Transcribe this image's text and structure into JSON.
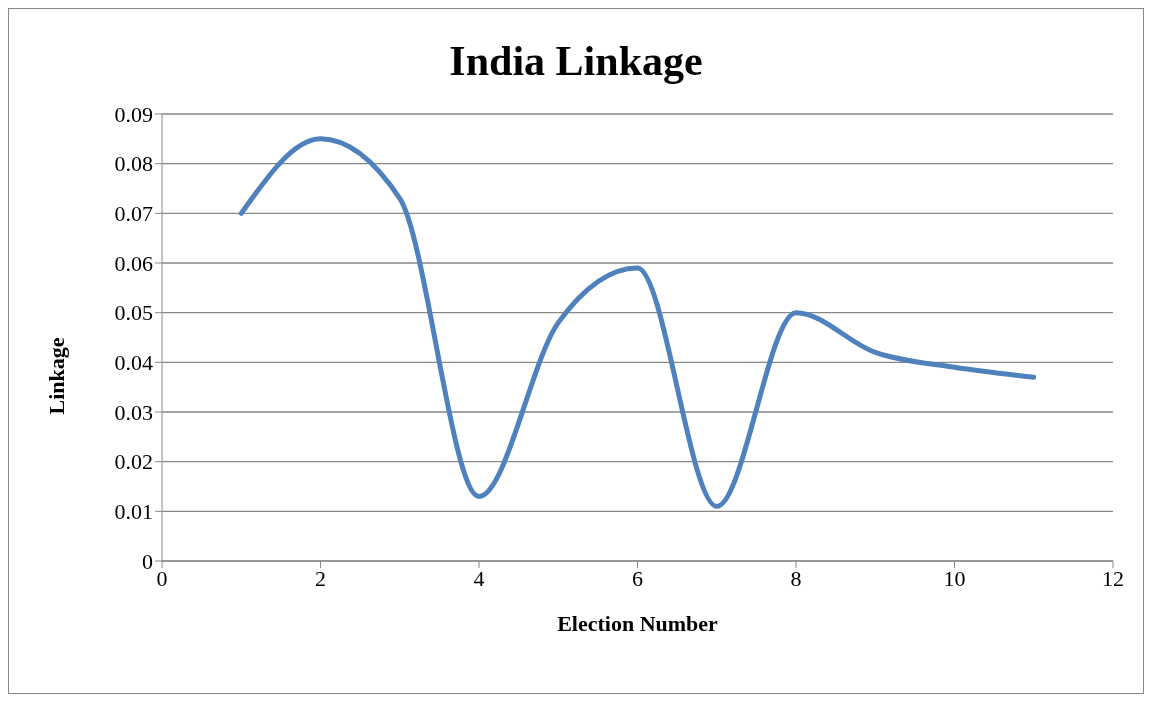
{
  "chart_data": {
    "type": "line",
    "title": "India Linkage",
    "xlabel": "Election Number",
    "ylabel": "Linkage",
    "x": [
      1,
      2,
      3,
      4,
      5,
      6,
      7,
      8,
      9,
      10,
      11
    ],
    "series": [
      {
        "color": "#4f81bd",
        "values": [
          0.07,
          0.085,
          0.073,
          0.013,
          0.048,
          0.059,
          0.011,
          0.05,
          0.042,
          0.039,
          0.037
        ]
      }
    ],
    "xlim": [
      0,
      12
    ],
    "xticks": [
      0,
      2,
      4,
      6,
      8,
      10,
      12
    ],
    "ylim": [
      0,
      0.09
    ],
    "yticks": [
      0,
      0.01,
      0.02,
      0.03,
      0.04,
      0.05,
      0.06,
      0.07,
      0.08,
      0.09
    ],
    "grid": "y",
    "legend": false,
    "marker": "none",
    "line_style": "solid"
  }
}
